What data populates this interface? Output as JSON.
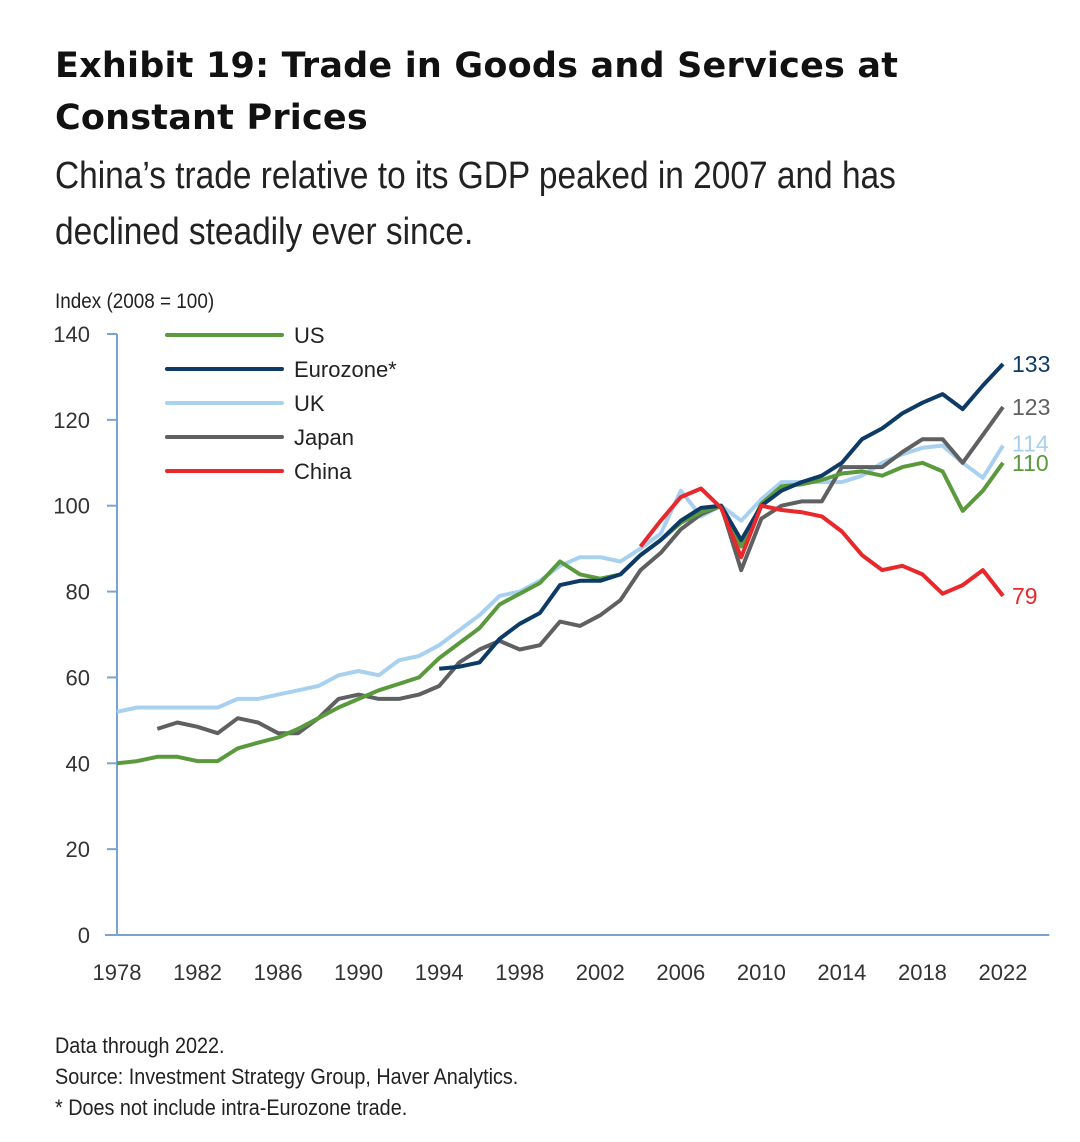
{
  "header": {
    "title_line1": "Exhibit 19: Trade in Goods and Services at",
    "title_line2": "Constant Prices",
    "subtitle_line1": "China’s trade relative to its GDP peaked in 2007 and has",
    "subtitle_line2": "declined steadily ever since."
  },
  "notes": {
    "line1": "Data through 2022.",
    "line2": "Source: Investment Strategy Group, Haver Analytics.",
    "line3": "* Does not include intra-Eurozone trade."
  },
  "chart_data": {
    "type": "line",
    "title": "Exhibit 19: Trade in Goods and Services at Constant Prices",
    "subtitle": "China’s trade relative to its GDP peaked in 2007 and has declined steadily ever since.",
    "xlabel": "",
    "ylabel": "Index (2008 = 100)",
    "xlim": [
      1978,
      2024
    ],
    "ylim": [
      0,
      140
    ],
    "x_ticks": [
      "1978",
      "1982",
      "1986",
      "1990",
      "1994",
      "1998",
      "2002",
      "2006",
      "2010",
      "2014",
      "2018",
      "2022"
    ],
    "y_ticks": [
      "0",
      "20",
      "40",
      "60",
      "80",
      "100",
      "120",
      "140"
    ],
    "grid": false,
    "legend_position": "top-left",
    "axis_color": "#7ba3d0",
    "series": [
      {
        "name": "US",
        "color": "#5a9a3c",
        "end_label": "110",
        "x": [
          1978,
          1979,
          1980,
          1981,
          1982,
          1983,
          1984,
          1985,
          1986,
          1987,
          1988,
          1989,
          1990,
          1991,
          1992,
          1993,
          1994,
          1995,
          1996,
          1997,
          1998,
          1999,
          2000,
          2001,
          2002,
          2003,
          2004,
          2005,
          2006,
          2007,
          2008,
          2009,
          2010,
          2011,
          2012,
          2013,
          2014,
          2015,
          2016,
          2017,
          2018,
          2019,
          2020,
          2021,
          2022
        ],
        "values": [
          40,
          40.5,
          41.5,
          41.5,
          40.5,
          40.5,
          43.5,
          44.8,
          46,
          48,
          50.5,
          53,
          55,
          57,
          58.5,
          60,
          64.5,
          68,
          71.5,
          77,
          79.5,
          82,
          87,
          84,
          83,
          84,
          88.5,
          92,
          96,
          98.5,
          100,
          90.5,
          100.5,
          104.5,
          105,
          106,
          107.5,
          108,
          107,
          109,
          110,
          108,
          98.8,
          103.5,
          110
        ]
      },
      {
        "name": "Eurozone*",
        "color": "#0d3b66",
        "end_label": "133",
        "x": [
          1994,
          1995,
          1996,
          1997,
          1998,
          1999,
          2000,
          2001,
          2002,
          2003,
          2004,
          2005,
          2006,
          2007,
          2008,
          2009,
          2010,
          2011,
          2012,
          2013,
          2014,
          2015,
          2016,
          2017,
          2018,
          2019,
          2020,
          2021,
          2022
        ],
        "values": [
          62,
          62.5,
          63.5,
          69,
          72.5,
          75,
          81.5,
          82.5,
          82.5,
          84,
          88.5,
          92,
          96.5,
          99.5,
          100,
          92,
          100,
          103.5,
          105.5,
          107,
          110,
          115.5,
          118,
          121.5,
          124,
          126,
          122.5,
          128,
          133
        ]
      },
      {
        "name": "UK",
        "color": "#a8d0ef",
        "end_label": "114",
        "x": [
          1978,
          1979,
          1980,
          1981,
          1982,
          1983,
          1984,
          1985,
          1986,
          1987,
          1988,
          1989,
          1990,
          1991,
          1992,
          1993,
          1994,
          1995,
          1996,
          1997,
          1998,
          1999,
          2000,
          2001,
          2002,
          2003,
          2004,
          2005,
          2006,
          2007,
          2008,
          2009,
          2010,
          2011,
          2012,
          2013,
          2014,
          2015,
          2016,
          2017,
          2018,
          2019,
          2020,
          2021,
          2022
        ],
        "values": [
          52,
          53,
          53,
          53,
          53,
          53,
          55,
          55,
          56,
          57,
          58,
          60.5,
          61.5,
          60.5,
          64,
          65,
          67.5,
          71,
          74.5,
          79,
          80,
          82.5,
          86,
          88,
          88,
          87,
          90,
          93.5,
          103.5,
          97.5,
          100,
          96.5,
          101.5,
          105.5,
          105.5,
          105.5,
          105.5,
          107,
          110,
          112,
          113.5,
          114,
          110,
          106.5,
          114
        ]
      },
      {
        "name": "Japan",
        "color": "#5f6062",
        "end_label": "123",
        "x": [
          1980,
          1981,
          1982,
          1983,
          1984,
          1985,
          1986,
          1987,
          1988,
          1989,
          1990,
          1991,
          1992,
          1993,
          1994,
          1995,
          1996,
          1997,
          1998,
          1999,
          2000,
          2001,
          2002,
          2003,
          2004,
          2005,
          2006,
          2007,
          2008,
          2009,
          2010,
          2011,
          2012,
          2013,
          2014,
          2015,
          2016,
          2017,
          2018,
          2019,
          2020,
          2021,
          2022
        ],
        "values": [
          48,
          49.5,
          48.5,
          47,
          50.5,
          49.5,
          47,
          47,
          50.5,
          55,
          56,
          55,
          55,
          56,
          58,
          63.5,
          66.5,
          68.5,
          66.5,
          67.5,
          73,
          72,
          74.5,
          78,
          85,
          89,
          94.5,
          98,
          100,
          85,
          97,
          100,
          101,
          101,
          109,
          109,
          109,
          112.5,
          115.5,
          115.5,
          110,
          116.5,
          123
        ]
      },
      {
        "name": "China",
        "color": "#e8282b",
        "end_label": "79",
        "x": [
          2004,
          2005,
          2006,
          2007,
          2008,
          2009,
          2010,
          2011,
          2012,
          2013,
          2014,
          2015,
          2016,
          2017,
          2018,
          2019,
          2020,
          2021,
          2022
        ],
        "values": [
          90.5,
          96.5,
          102,
          104,
          99.5,
          88,
          100,
          99,
          98.5,
          97.5,
          94,
          88.5,
          85,
          86,
          84,
          79.5,
          81.5,
          85,
          79
        ]
      }
    ]
  }
}
